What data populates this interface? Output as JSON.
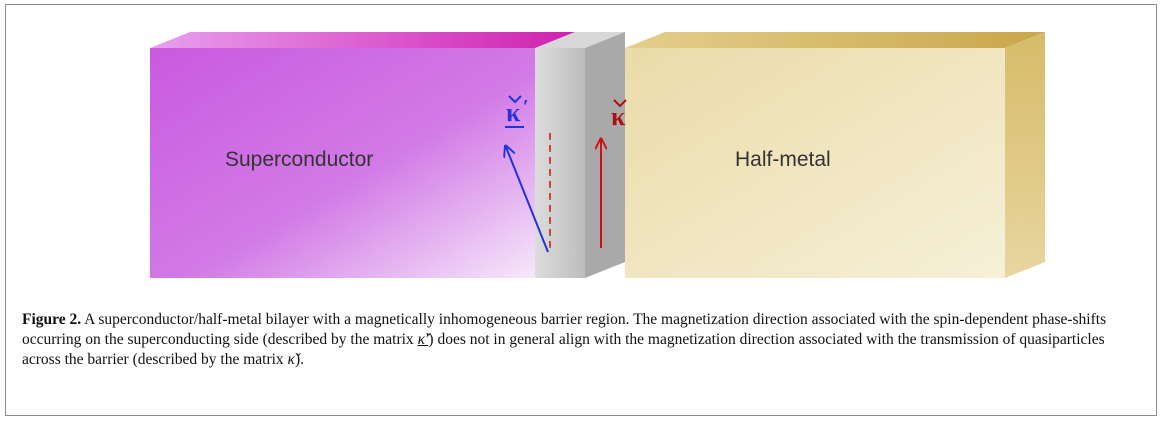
{
  "figure": {
    "label_superconductor": "Superconductor",
    "label_halfmetal": "Half-metal",
    "symbol_left": "κ",
    "symbol_left_prime": "′",
    "symbol_right": "κ",
    "colors": {
      "superconductor": "#cc66e0",
      "halfmetal": "#f0e4b8",
      "barrier": "#c8c8c8",
      "arrow_left": "#2233dd",
      "arrow_right": "#cc1111"
    }
  },
  "caption": {
    "label": "Figure 2.",
    "text_1": " A superconductor/half-metal bilayer with a magnetically inhomogeneous barrier region. The magnetization direction associated with the spin-dependent phase-shifts occurring on the superconducting side (described by the matrix ",
    "matrix_1": "κ̌′",
    "text_2": ") does not in general align with the magnetization direction associated with the transmission of quasiparticles across the barrier (described by the matrix ",
    "matrix_2": "κ̌",
    "text_3": ")."
  }
}
